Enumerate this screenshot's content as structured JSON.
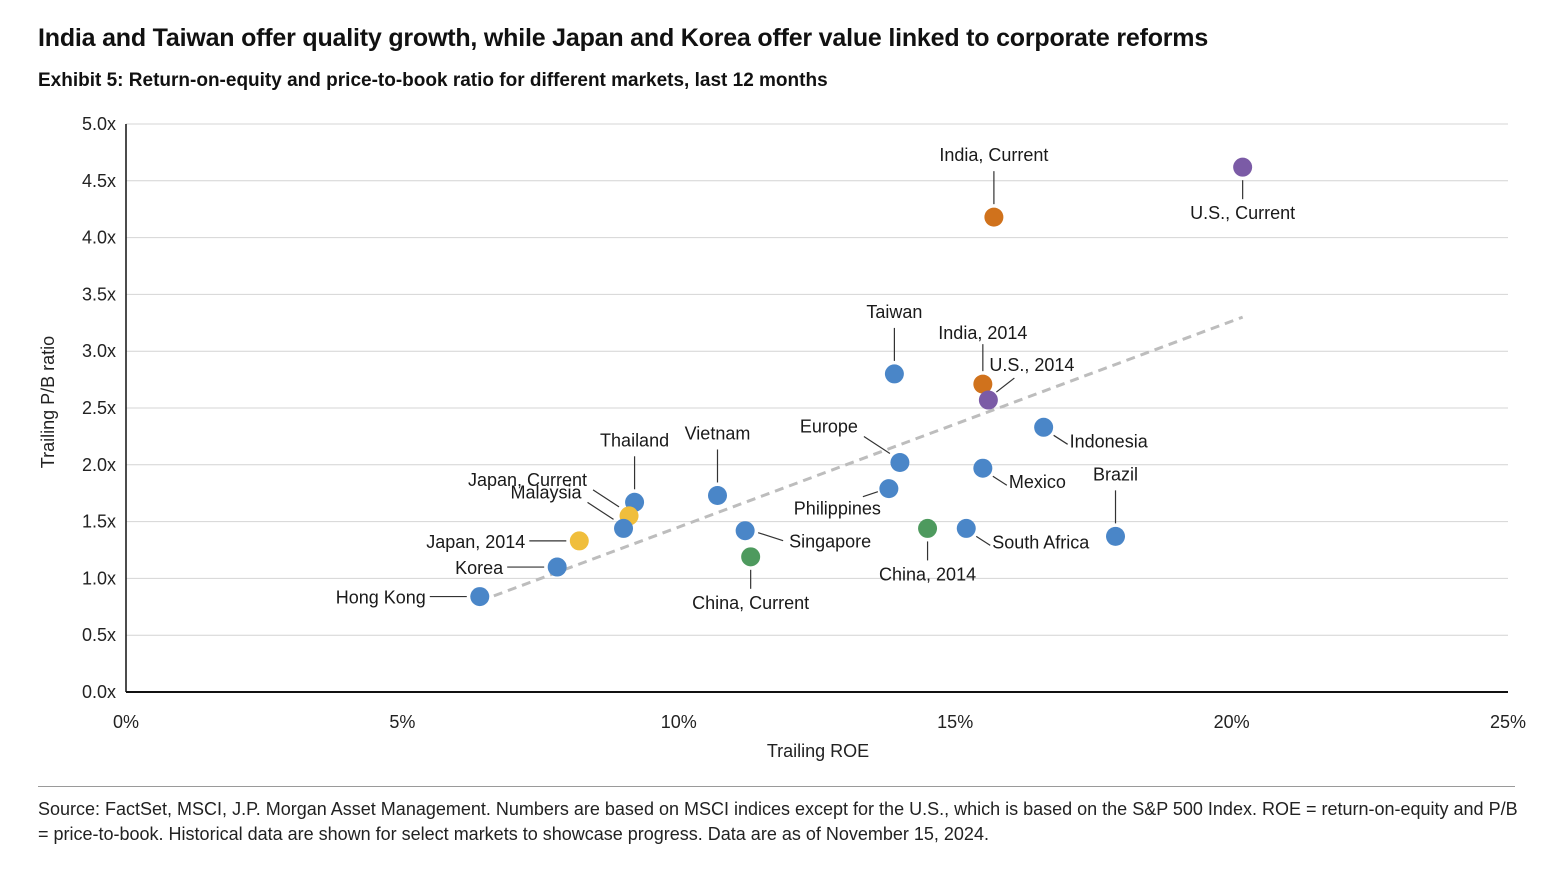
{
  "title": "India and Taiwan offer quality growth, while Japan and Korea offer value linked to corporate reforms",
  "subtitle": "Exhibit 5: Return-on-equity and price-to-book ratio for different markets, last 12 months",
  "source": "Source: FactSet, MSCI, J.P. Morgan Asset Management. Numbers are based on MSCI indices except for the U.S., which is based on the S&P 500 Index.  ROE = return-on-equity and P/B = price-to-book. Historical data are shown for select markets to showcase progress. Data are as of November 15, 2024.",
  "colors": {
    "blue": "#4a86c8",
    "orange": "#d0721c",
    "purple": "#7b5ba6",
    "yellow": "#f0be3c",
    "green": "#4e9a5e",
    "trend": "#bdbdbd",
    "grid": "#d4d4d4"
  },
  "chart_data": {
    "type": "scatter",
    "xlabel": "Trailing ROE",
    "ylabel": "Trailing P/B ratio",
    "xlim": [
      0,
      25
    ],
    "ylim": [
      0,
      5
    ],
    "x_ticks": [
      "0%",
      "5%",
      "10%",
      "15%",
      "20%",
      "25%"
    ],
    "y_ticks": [
      "0.0x",
      "0.5x",
      "1.0x",
      "1.5x",
      "2.0x",
      "2.5x",
      "3.0x",
      "3.5x",
      "4.0x",
      "4.5x",
      "5.0x"
    ],
    "grid": "horizontal",
    "trendline": {
      "x": [
        6.4,
        20.2
      ],
      "y": [
        0.8,
        3.3
      ]
    },
    "points": [
      {
        "name": "India, Current",
        "x": 15.7,
        "y": 4.18,
        "color": "orange",
        "label_pos": "above"
      },
      {
        "name": "U.S., Current",
        "x": 20.2,
        "y": 4.62,
        "color": "purple",
        "label_pos": "below"
      },
      {
        "name": "Taiwan",
        "x": 13.9,
        "y": 2.8,
        "color": "blue",
        "label_pos": "above"
      },
      {
        "name": "India, 2014",
        "x": 15.5,
        "y": 2.71,
        "color": "orange",
        "label_pos": "above-right"
      },
      {
        "name": "U.S., 2014",
        "x": 15.6,
        "y": 2.57,
        "color": "purple",
        "label_pos": "upper-right"
      },
      {
        "name": "Indonesia",
        "x": 16.6,
        "y": 2.33,
        "color": "blue",
        "label_pos": "lower-right"
      },
      {
        "name": "Europe",
        "x": 14.0,
        "y": 2.02,
        "color": "blue",
        "label_pos": "upper-left"
      },
      {
        "name": "Mexico",
        "x": 15.5,
        "y": 1.97,
        "color": "blue",
        "label_pos": "lower-right"
      },
      {
        "name": "Philippines",
        "x": 13.8,
        "y": 1.79,
        "color": "blue",
        "label_pos": "lower-left"
      },
      {
        "name": "Brazil",
        "x": 17.9,
        "y": 1.37,
        "color": "blue",
        "label_pos": "above"
      },
      {
        "name": "South Africa",
        "x": 15.2,
        "y": 1.44,
        "color": "blue",
        "label_pos": "lower-right"
      },
      {
        "name": "China, 2014",
        "x": 14.5,
        "y": 1.44,
        "color": "green",
        "label_pos": "below"
      },
      {
        "name": "China, Current",
        "x": 11.3,
        "y": 1.19,
        "color": "green",
        "label_pos": "below"
      },
      {
        "name": "Singapore",
        "x": 11.2,
        "y": 1.42,
        "color": "blue",
        "label_pos": "right"
      },
      {
        "name": "Vietnam",
        "x": 10.7,
        "y": 1.73,
        "color": "blue",
        "label_pos": "above"
      },
      {
        "name": "Thailand",
        "x": 9.2,
        "y": 1.67,
        "color": "blue",
        "label_pos": "above"
      },
      {
        "name": "Japan, Current",
        "x": 9.1,
        "y": 1.55,
        "color": "yellow",
        "label_pos": "upper-left"
      },
      {
        "name": "Malaysia",
        "x": 9.0,
        "y": 1.44,
        "color": "blue",
        "label_pos": "upper-left"
      },
      {
        "name": "Japan, 2014",
        "x": 8.2,
        "y": 1.33,
        "color": "yellow",
        "label_pos": "left"
      },
      {
        "name": "Korea",
        "x": 7.8,
        "y": 1.1,
        "color": "blue",
        "label_pos": "left"
      },
      {
        "name": "Hong Kong",
        "x": 6.4,
        "y": 0.84,
        "color": "blue",
        "label_pos": "left"
      }
    ]
  }
}
